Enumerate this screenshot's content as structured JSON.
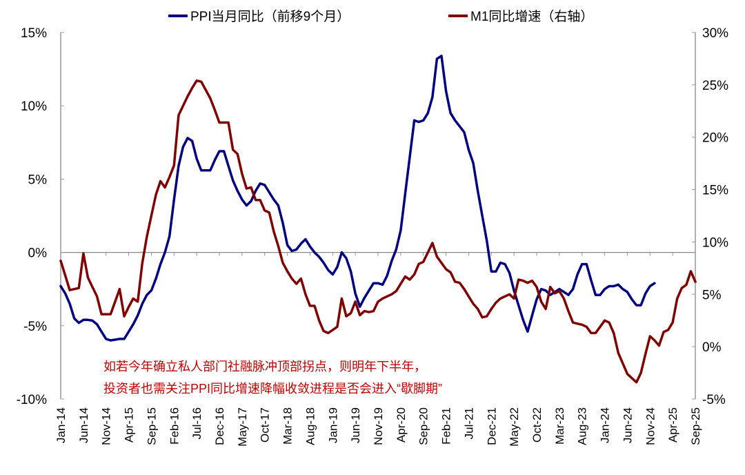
{
  "chart_data": {
    "type": "line",
    "title": "",
    "x_start": "Jan-14",
    "x_end": "Sep-25",
    "x_frequency": "monthly",
    "x_tick_labels": [
      "Jan-14",
      "Jun-14",
      "Nov-14",
      "Apr-15",
      "Sep-15",
      "Feb-16",
      "Jul-16",
      "Dec-16",
      "May-17",
      "Oct-17",
      "Mar-18",
      "Aug-18",
      "Jan-19",
      "Jun-19",
      "Nov-19",
      "Apr-20",
      "Sep-20",
      "Feb-21",
      "Jul-21",
      "Dec-21",
      "May-22",
      "Oct-22",
      "Mar-23",
      "Aug-23",
      "Jan-24",
      "Jun-24",
      "Nov-24",
      "Apr-25",
      "Sep-25"
    ],
    "y_left": {
      "range": [
        -10,
        15
      ],
      "ticks": [
        "-10%",
        "-5%",
        "0%",
        "5%",
        "10%",
        "15%"
      ],
      "unit": "%"
    },
    "y_right": {
      "range": [
        -5,
        30
      ],
      "ticks": [
        "-5%",
        "0%",
        "5%",
        "10%",
        "15%",
        "20%",
        "25%",
        "30%"
      ],
      "unit": "%"
    },
    "grid": false,
    "legend_placement": "top",
    "series": [
      {
        "name": "PPI当月同比（前移9个月）",
        "axis": "left",
        "color": "#000080",
        "start": "Jan-14",
        "values": [
          -2.3,
          -2.8,
          -3.5,
          -4.5,
          -4.8,
          -4.6,
          -4.6,
          -4.65,
          -4.9,
          -5.4,
          -5.9,
          -6.0,
          -5.95,
          -5.9,
          -5.9,
          -5.4,
          -4.9,
          -4.3,
          -3.5,
          -2.9,
          -2.6,
          -1.8,
          -0.8,
          0.0,
          1.1,
          3.6,
          5.9,
          7.2,
          7.8,
          7.6,
          6.4,
          5.6,
          5.6,
          5.6,
          6.3,
          6.9,
          6.9,
          5.9,
          4.9,
          4.2,
          3.6,
          3.2,
          3.5,
          4.2,
          4.7,
          4.6,
          4.1,
          3.6,
          3.2,
          2.0,
          0.5,
          0.1,
          0.2,
          0.6,
          0.9,
          0.4,
          0.0,
          -0.3,
          -0.7,
          -1.2,
          -1.5,
          -1.0,
          0.0,
          -0.4,
          -1.3,
          -2.8,
          -3.7,
          -3.1,
          -2.6,
          -2.1,
          -2.1,
          -2.2,
          -1.6,
          -0.6,
          0.2,
          1.5,
          4.0,
          6.5,
          9.0,
          8.9,
          9.0,
          9.5,
          10.6,
          13.2,
          13.4,
          11.0,
          9.5,
          9.0,
          8.6,
          8.2,
          7.0,
          6.1,
          4.2,
          2.5,
          0.8,
          -1.3,
          -1.3,
          -0.7,
          -0.8,
          -1.4,
          -2.6,
          -3.6,
          -4.6,
          -5.4,
          -4.3,
          -3.2,
          -2.5,
          -2.6,
          -2.9,
          -2.7,
          -2.5,
          -2.7,
          -2.9,
          -2.5,
          -1.5,
          -0.8,
          -0.8,
          -1.9,
          -2.9,
          -2.9,
          -2.5,
          -2.3,
          -2.3,
          -2.2,
          -2.5,
          -2.7,
          -3.2,
          -3.6,
          -3.6,
          -2.8,
          -2.3,
          -2.1
        ]
      },
      {
        "name": "M1同比增速（右轴）",
        "axis": "right",
        "color": "#800000",
        "start": "Jan-14",
        "values": [
          8.2,
          6.8,
          5.4,
          5.5,
          5.6,
          8.9,
          6.6,
          5.7,
          4.8,
          3.1,
          3.1,
          3.1,
          4.3,
          5.5,
          2.9,
          3.8,
          4.6,
          4.3,
          8.0,
          10.5,
          12.5,
          14.5,
          15.8,
          15.2,
          16.2,
          17.3,
          22.1,
          23.0,
          23.9,
          24.7,
          25.4,
          25.3,
          24.5,
          23.7,
          22.6,
          21.4,
          21.4,
          21.4,
          18.8,
          18.4,
          16.5,
          15.1,
          15.2,
          14.0,
          14.0,
          13.0,
          12.8,
          11.0,
          9.6,
          8.0,
          7.2,
          6.5,
          6.0,
          6.5,
          5.0,
          3.9,
          3.9,
          2.5,
          1.5,
          1.3,
          1.6,
          1.9,
          4.6,
          2.9,
          3.2,
          4.3,
          3.0,
          3.4,
          3.3,
          3.4,
          4.3,
          4.6,
          4.8,
          5.0,
          5.3,
          6.0,
          6.7,
          6.4,
          6.9,
          7.9,
          8.1,
          9.0,
          9.9,
          8.6,
          8.0,
          7.4,
          7.1,
          6.2,
          6.1,
          5.5,
          4.8,
          4.1,
          3.6,
          2.8,
          2.9,
          3.6,
          4.2,
          4.6,
          4.8,
          5.0,
          4.6,
          6.4,
          6.3,
          6.1,
          6.3,
          5.7,
          4.3,
          3.6,
          5.7,
          5.1,
          5.3,
          4.6,
          3.4,
          2.3,
          2.2,
          2.1,
          1.9,
          1.3,
          1.3,
          1.9,
          2.5,
          2.3,
          1.3,
          -0.6,
          -1.6,
          -2.6,
          -3.0,
          -3.4,
          -2.5,
          -0.7,
          1.0,
          0.6,
          0.1,
          1.4,
          1.6,
          2.3,
          4.6,
          5.6,
          5.9,
          7.2,
          6.2
        ]
      }
    ],
    "annotations": [
      "如若今年确立私人部门社融脉冲顶部拐点，则明年下半年，",
      "投资者也需关注PPI同比增速降幅收敛进程是否会进入“歇脚期”"
    ]
  }
}
